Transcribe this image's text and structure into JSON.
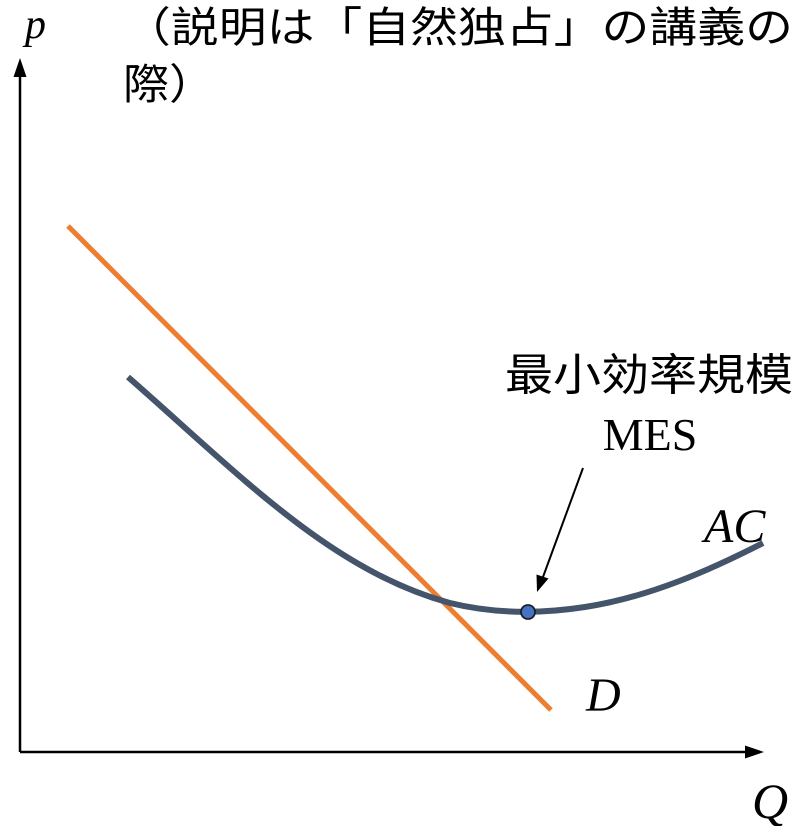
{
  "diagram": {
    "axes": {
      "y_label": "p",
      "x_label": "Q",
      "color": "#000000"
    },
    "note": {
      "line1": "（説明は「自然独占」の講義の",
      "line2": "際）"
    },
    "curves": {
      "demand": {
        "label": "D",
        "color": "#ED7D31"
      },
      "average_cost": {
        "label": "AC",
        "color": "#44546A"
      }
    },
    "mes": {
      "label_ja": "最小効率規模",
      "label_en": "MES",
      "point_color": "#4472C4",
      "arrow_color": "#000000"
    }
  }
}
